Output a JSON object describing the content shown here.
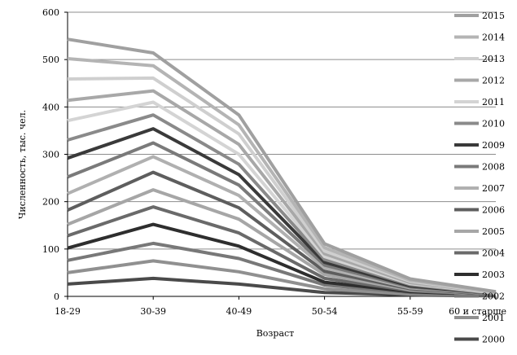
{
  "chart_data": {
    "type": "line",
    "xlabel": "Возраст",
    "ylabel": "Численность, тыс. чел.",
    "ylim": [
      0,
      600
    ],
    "yticks": [
      "0",
      "100",
      "200",
      "300",
      "400",
      "500",
      "600"
    ],
    "categories": [
      "18-29",
      "30-39",
      "40-49",
      "50-54",
      "55-59",
      "60 и старше"
    ],
    "grid": true,
    "legend_position": "right",
    "series": [
      {
        "name": "2015",
        "color": "#a0a0a0",
        "values": [
          543,
          514,
          383,
          111,
          37,
          10
        ]
      },
      {
        "name": "2014",
        "color": "#b4b4b4",
        "values": [
          502,
          487,
          362,
          103,
          34,
          9
        ]
      },
      {
        "name": "2013",
        "color": "#cfcfcf",
        "values": [
          459,
          461,
          343,
          96,
          32,
          8
        ]
      },
      {
        "name": "2012",
        "color": "#a8a8a8",
        "values": [
          414,
          434,
          321,
          90,
          29,
          8
        ]
      },
      {
        "name": "2011",
        "color": "#d4d4d4",
        "values": [
          371,
          410,
          300,
          84,
          27,
          7
        ]
      },
      {
        "name": "2010",
        "color": "#8a8a8a",
        "values": [
          330,
          383,
          279,
          78,
          25,
          6
        ]
      },
      {
        "name": "2009",
        "color": "#3a3a3a",
        "values": [
          292,
          354,
          257,
          72,
          22,
          6
        ]
      },
      {
        "name": "2008",
        "color": "#7a7a7a",
        "values": [
          252,
          324,
          235,
          66,
          20,
          5
        ]
      },
      {
        "name": "2007",
        "color": "#b0b0b0",
        "values": [
          217,
          295,
          213,
          60,
          18,
          5
        ]
      },
      {
        "name": "2006",
        "color": "#5e5e5e",
        "values": [
          182,
          262,
          187,
          53,
          16,
          4
        ]
      },
      {
        "name": "2005",
        "color": "#a6a6a6",
        "values": [
          152,
          225,
          163,
          46,
          14,
          4
        ]
      },
      {
        "name": "2004",
        "color": "#6a6a6a",
        "values": [
          128,
          189,
          134,
          38,
          12,
          3
        ]
      },
      {
        "name": "2003",
        "color": "#2e2e2e",
        "values": [
          102,
          152,
          106,
          30,
          10,
          3
        ]
      },
      {
        "name": "2002",
        "color": "#787878",
        "values": [
          76,
          112,
          80,
          24,
          8,
          2
        ]
      },
      {
        "name": "2001",
        "color": "#909090",
        "values": [
          50,
          75,
          52,
          16,
          5,
          2
        ]
      },
      {
        "name": "2000",
        "color": "#4a4a4a",
        "values": [
          26,
          38,
          26,
          8,
          3,
          1
        ]
      }
    ]
  }
}
